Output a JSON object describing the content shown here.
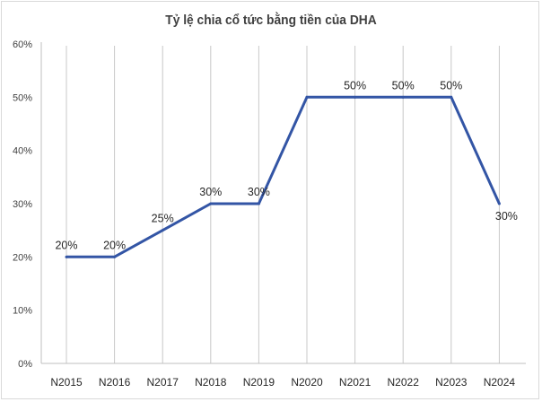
{
  "chart_data": {
    "type": "line",
    "title": "Tỷ lệ chia cổ tức bằng tiền của DHA",
    "categories": [
      "N2015",
      "N2016",
      "N2017",
      "N2018",
      "N2019",
      "N2020",
      "N2021",
      "N2022",
      "N2023",
      "N2024"
    ],
    "values": [
      20,
      20,
      25,
      30,
      30,
      50,
      50,
      50,
      50,
      30
    ],
    "data_labels": [
      "20%",
      "20%",
      "25%",
      "30%",
      "30%",
      "",
      "50%",
      "50%",
      "50%",
      "30%"
    ],
    "y_ticks": [
      "0%",
      "10%",
      "20%",
      "30%",
      "40%",
      "50%",
      "60%"
    ],
    "ylim": [
      0,
      60
    ],
    "y_unit": "%",
    "grid": "vertical gridlines at categories",
    "legend": "none",
    "series_color": "#3355a5",
    "grid_color": "#c8c8c8",
    "axis_color": "#bfbfbf"
  }
}
